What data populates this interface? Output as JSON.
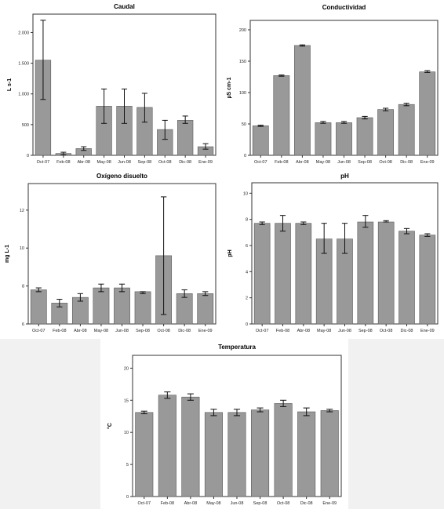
{
  "colors": {
    "bar": "#999999",
    "bar_edge": "#5a5a5a",
    "axis": "#333333",
    "background_strip": "#f1f1f1"
  },
  "chart_data": [
    {
      "type": "bar",
      "title": "Caudal",
      "ylabel": "L s-1",
      "categories": [
        "Oct-07",
        "Feb-08",
        "Abr-08",
        "May-08",
        "Jun-08",
        "Sep-08",
        "Oct-08",
        "Dic-08",
        "Ene-09"
      ],
      "values": [
        1550,
        30,
        110,
        800,
        800,
        780,
        420,
        570,
        140
      ],
      "error_low": [
        910,
        10,
        80,
        520,
        520,
        540,
        260,
        520,
        100
      ],
      "error_high": [
        2200,
        50,
        140,
        1080,
        1080,
        1010,
        570,
        640,
        190
      ],
      "ylim": [
        0,
        2300
      ],
      "yticks": [
        0,
        500,
        1000,
        1500,
        2000
      ],
      "ytick_labels": [
        "0",
        "500",
        "1.000",
        "1.500",
        "2.000"
      ],
      "grid": false
    },
    {
      "type": "bar",
      "title": "Conductividad",
      "ylabel": "µS cm-1",
      "categories": [
        "Oct-07",
        "Feb-08",
        "Abr-08",
        "May-08",
        "Jun-08",
        "Sep-08",
        "Oct-08",
        "Dic-08",
        "Ene-09"
      ],
      "values": [
        47,
        127,
        175,
        52,
        52,
        60,
        73,
        81,
        133
      ],
      "error_low": [
        46,
        126,
        174,
        51,
        51,
        58,
        71,
        79,
        132
      ],
      "error_high": [
        48,
        128,
        176,
        54,
        54,
        62,
        75,
        83,
        135
      ],
      "ylim": [
        0,
        215
      ],
      "yticks": [
        0,
        50,
        100,
        150,
        200
      ],
      "ytick_labels": [
        "0",
        "50",
        "100",
        "150",
        "200"
      ],
      "grid": false
    },
    {
      "type": "bar",
      "title": "Oxígeno disuelto",
      "ylabel": "mg L-1",
      "categories": [
        "Oct-07",
        "Feb-08",
        "Abr-08",
        "May-08",
        "Jun-08",
        "Sep-08",
        "Oct-08",
        "Dic-08",
        "Ene-09"
      ],
      "values": [
        7.8,
        7.1,
        7.4,
        7.9,
        7.9,
        7.7,
        9.6,
        7.6,
        7.6
      ],
      "error_low": [
        7.7,
        6.9,
        7.2,
        7.7,
        7.7,
        7.6,
        6.5,
        7.4,
        7.5
      ],
      "error_high": [
        7.9,
        7.3,
        7.6,
        8.1,
        8.1,
        7.7,
        12.7,
        7.8,
        7.7
      ],
      "ylim": [
        6,
        13.4
      ],
      "yticks": [
        6,
        8,
        10,
        12
      ],
      "ytick_labels": [
        "6",
        "8",
        "10",
        "12"
      ],
      "grid": false
    },
    {
      "type": "bar",
      "title": "pH",
      "ylabel": "pH",
      "categories": [
        "Oct-07",
        "Feb-08",
        "Abr-08",
        "May-08",
        "Jun-08",
        "Sep-08",
        "Oct-08",
        "Dic-08",
        "Ene-09"
      ],
      "values": [
        7.7,
        7.7,
        7.7,
        6.5,
        6.5,
        7.8,
        7.8,
        7.1,
        6.8
      ],
      "error_low": [
        7.6,
        7.1,
        7.6,
        5.4,
        5.4,
        7.4,
        7.8,
        6.9,
        6.7
      ],
      "error_high": [
        7.8,
        8.3,
        7.8,
        7.7,
        7.7,
        8.3,
        7.9,
        7.3,
        6.9
      ],
      "ylim": [
        0,
        10.8
      ],
      "yticks": [
        0,
        2,
        4,
        6,
        8,
        10
      ],
      "ytick_labels": [
        "0",
        "2",
        "4",
        "6",
        "8",
        "10"
      ],
      "grid": false
    },
    {
      "type": "bar",
      "title": "Temperatura",
      "ylabel": "°C",
      "categories": [
        "Oct-07",
        "Feb-08",
        "Abr-08",
        "May-08",
        "Jun-08",
        "Sep-08",
        "Oct-08",
        "Dic-08",
        "Ene-09"
      ],
      "values": [
        13.1,
        15.8,
        15.5,
        13.1,
        13.1,
        13.5,
        14.5,
        13.2,
        13.4
      ],
      "error_low": [
        12.9,
        15.3,
        15.0,
        12.6,
        12.6,
        13.2,
        14.0,
        12.6,
        13.2
      ],
      "error_high": [
        13.3,
        16.3,
        16.0,
        13.6,
        13.6,
        13.8,
        15.0,
        13.8,
        13.6
      ],
      "ylim": [
        0,
        22
      ],
      "yticks": [
        0,
        5,
        10,
        15,
        20
      ],
      "ytick_labels": [
        "0",
        "5",
        "10",
        "15",
        "20"
      ],
      "grid": false
    }
  ]
}
